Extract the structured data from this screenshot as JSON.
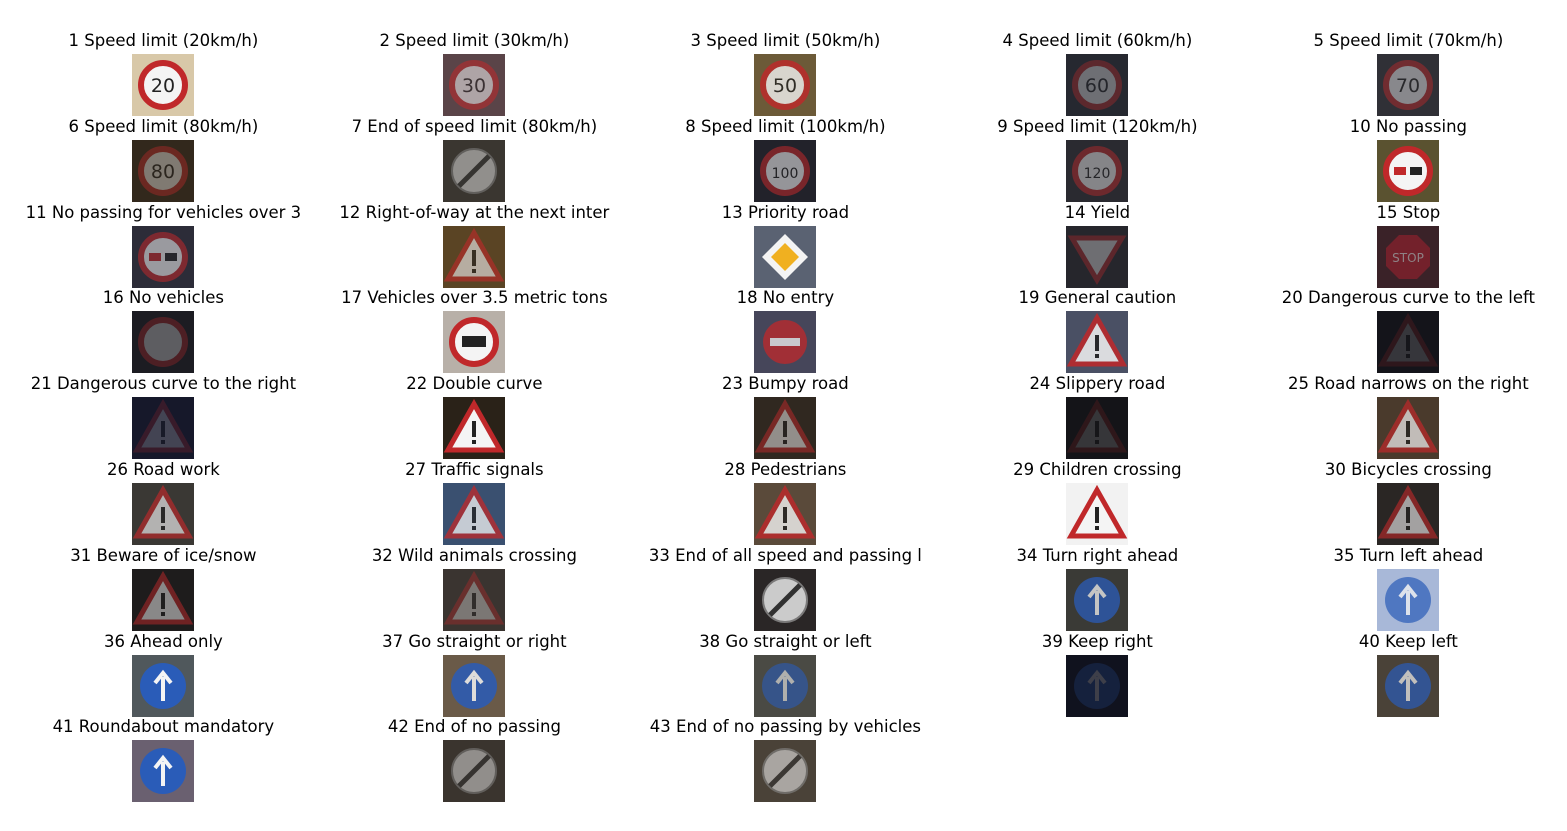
{
  "figure": {
    "signs": [
      {
        "label": "1 Speed limit (20km/h)",
        "icon": "speed-limit-20-sign",
        "bg": "#d8c8a8",
        "brightness": 1.0
      },
      {
        "label": "2 Speed limit (30km/h)",
        "icon": "speed-limit-30-sign",
        "bg": "#5a4448",
        "brightness": 0.55
      },
      {
        "label": "3 Speed limit (50km/h)",
        "icon": "speed-limit-50-sign",
        "bg": "#6c5a38",
        "brightness": 0.8
      },
      {
        "label": "4 Speed limit (60km/h)",
        "icon": "speed-limit-60-sign",
        "bg": "#262830",
        "brightness": 0.35
      },
      {
        "label": "5 Speed limit (70km/h)",
        "icon": "speed-limit-70-sign",
        "bg": "#303036",
        "brightness": 0.45
      },
      {
        "label": "6 Speed limit (80km/h)",
        "icon": "speed-limit-80-sign",
        "bg": "#32281c",
        "brightness": 0.4
      },
      {
        "label": "7 End of speed limit (80km/h)",
        "icon": "end-speed-limit-80-sign",
        "bg": "#3a3630",
        "brightness": 0.5
      },
      {
        "label": "8 Speed limit (100km/h)",
        "icon": "speed-limit-100-sign",
        "bg": "#22222a",
        "brightness": 0.55
      },
      {
        "label": "9 Speed limit (120km/h)",
        "icon": "speed-limit-120-sign",
        "bg": "#2a2a30",
        "brightness": 0.45
      },
      {
        "label": "10 No passing",
        "icon": "no-passing-sign",
        "bg": "#5a5230",
        "brightness": 1.0
      },
      {
        "label": "11 No passing for vehicles over 3",
        "icon": "no-passing-heavy-vehicles-sign",
        "bg": "#2c2c38",
        "brightness": 0.55
      },
      {
        "label": "12 Right-of-way at the next inter",
        "icon": "right-of-way-sign",
        "bg": "#5a4424",
        "brightness": 0.6
      },
      {
        "label": "13 Priority road",
        "icon": "priority-road-sign",
        "bg": "#5a6272",
        "brightness": 1.0
      },
      {
        "label": "14 Yield",
        "icon": "yield-sign",
        "bg": "#26262c",
        "brightness": 0.35
      },
      {
        "label": "15 Stop",
        "icon": "stop-sign",
        "bg": "#3a2228",
        "brightness": 0.45
      },
      {
        "label": "16 No vehicles",
        "icon": "no-vehicles-sign",
        "bg": "#1c1c22",
        "brightness": 0.3
      },
      {
        "label": "17 Vehicles over 3.5 metric tons",
        "icon": "no-heavy-vehicles-sign",
        "bg": "#b8b0a8",
        "brightness": 1.0
      },
      {
        "label": "18 No entry",
        "icon": "no-entry-sign",
        "bg": "#46465a",
        "brightness": 0.75
      },
      {
        "label": "19 General caution",
        "icon": "general-caution-sign",
        "bg": "#4a5064",
        "brightness": 0.85
      },
      {
        "label": "20 Dangerous curve to the left",
        "icon": "curve-left-sign",
        "bg": "#14141a",
        "brightness": 0.12
      },
      {
        "label": "21 Dangerous curve to the right",
        "icon": "curve-right-sign",
        "bg": "#16182a",
        "brightness": 0.2
      },
      {
        "label": "22 Double curve",
        "icon": "double-curve-sign",
        "bg": "#2a2218",
        "brightness": 1.0
      },
      {
        "label": "23 Bumpy road",
        "icon": "bumpy-road-sign",
        "bg": "#302820",
        "brightness": 0.5
      },
      {
        "label": "24 Slippery road",
        "icon": "slippery-road-sign",
        "bg": "#141418",
        "brightness": 0.12
      },
      {
        "label": "25 Road narrows on the right",
        "icon": "road-narrows-sign",
        "bg": "#4a3a2c",
        "brightness": 0.7
      },
      {
        "label": "26 Road work",
        "icon": "road-work-sign",
        "bg": "#3a3834",
        "brightness": 0.65
      },
      {
        "label": "27 Traffic signals",
        "icon": "traffic-signals-sign",
        "bg": "#3a5070",
        "brightness": 0.75
      },
      {
        "label": "28 Pedestrians",
        "icon": "pedestrians-sign",
        "bg": "#5a4a3a",
        "brightness": 0.8
      },
      {
        "label": "29 Children crossing",
        "icon": "children-crossing-sign",
        "bg": "#f2f2f2",
        "brightness": 1.0
      },
      {
        "label": "30 Bicycles crossing",
        "icon": "bicycles-crossing-sign",
        "bg": "#2a2624",
        "brightness": 0.6
      },
      {
        "label": "31 Beware of ice/snow",
        "icon": "ice-snow-sign",
        "bg": "#1e1c1c",
        "brightness": 0.5
      },
      {
        "label": "32 Wild animals crossing",
        "icon": "wild-animals-sign",
        "bg": "#3a3430",
        "brightness": 0.35
      },
      {
        "label": "33 End of all speed and passing l",
        "icon": "end-of-limits-sign",
        "bg": "#2a2626",
        "brightness": 0.85
      },
      {
        "label": "34 Turn right ahead",
        "icon": "turn-right-ahead-sign",
        "bg": "#3a3a36",
        "brightness": 0.75
      },
      {
        "label": "35 Turn left ahead",
        "icon": "turn-left-ahead-sign",
        "bg": "#a8b8d8",
        "brightness": 0.7
      },
      {
        "label": "36 Ahead only",
        "icon": "ahead-only-sign",
        "bg": "#50585c",
        "brightness": 1.0
      },
      {
        "label": "37 Go straight or right",
        "icon": "straight-or-right-sign",
        "bg": "#6a5a48",
        "brightness": 0.85
      },
      {
        "label": "38 Go straight or left",
        "icon": "straight-or-left-sign",
        "bg": "#4a4a44",
        "brightness": 0.6
      },
      {
        "label": "39 Keep right",
        "icon": "keep-right-sign",
        "bg": "#10121e",
        "brightness": 0.2
      },
      {
        "label": "40 Keep left",
        "icon": "keep-left-sign",
        "bg": "#4a4238",
        "brightness": 0.7
      },
      {
        "label": "41 Roundabout mandatory",
        "icon": "roundabout-sign",
        "bg": "#6a6070",
        "brightness": 1.0
      },
      {
        "label": "42 End of no passing",
        "icon": "end-no-passing-sign",
        "bg": "#3a342e",
        "brightness": 0.5
      },
      {
        "label": "43 End of no passing by vehicles",
        "icon": "end-no-passing-heavy-sign",
        "bg": "#4a4238",
        "brightness": 0.6
      }
    ]
  }
}
